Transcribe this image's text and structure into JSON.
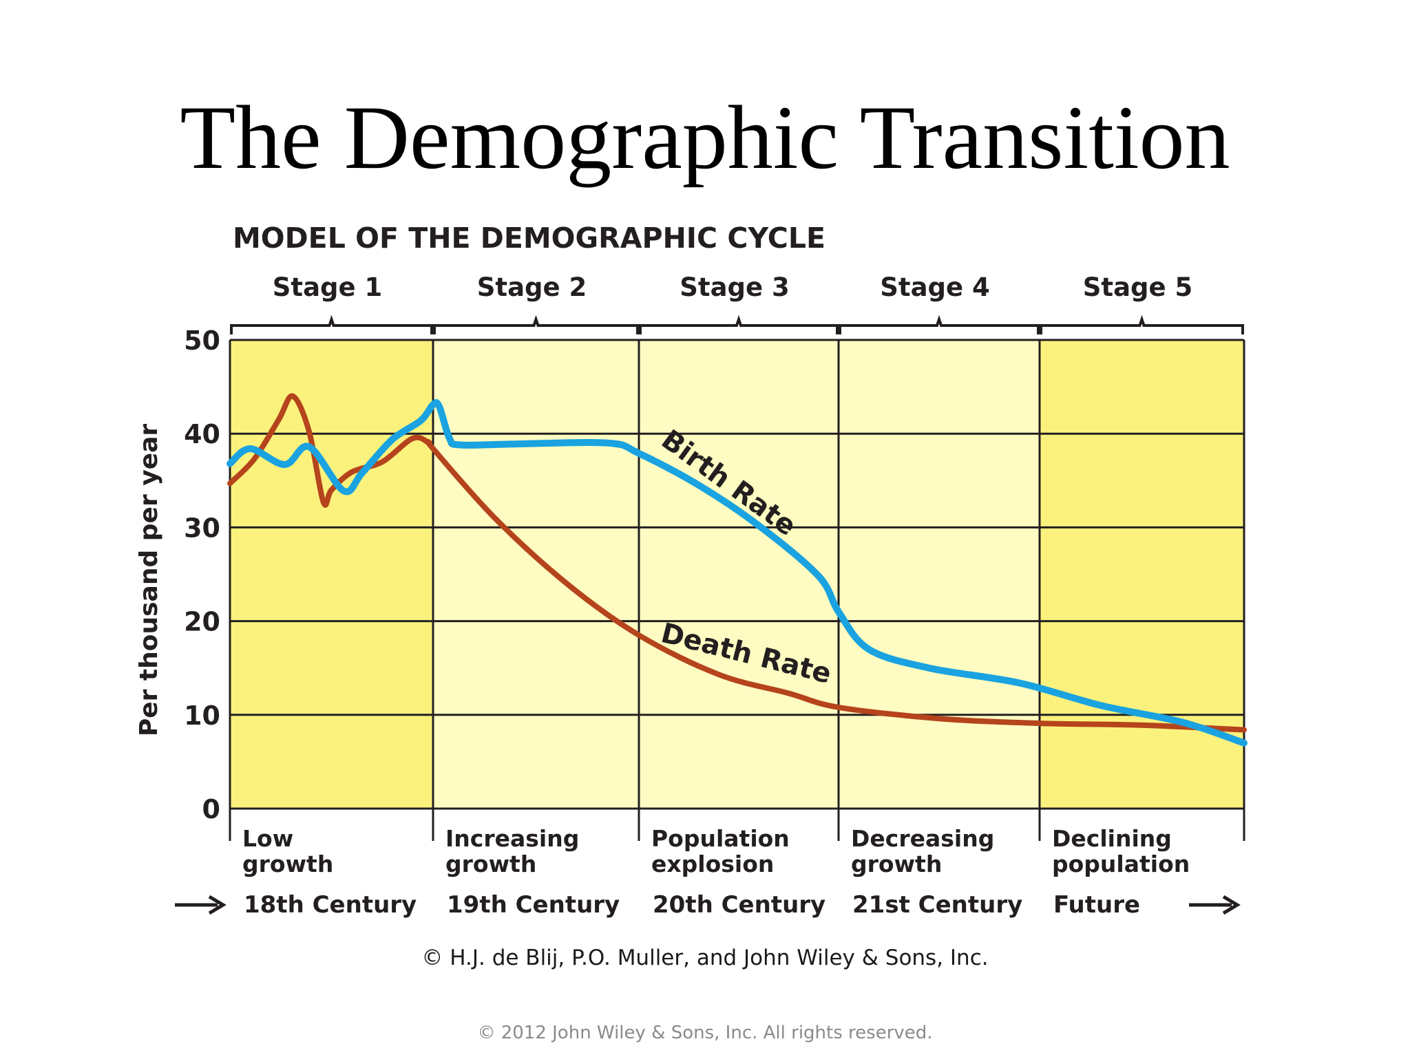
{
  "slide": {
    "title": "The Demographic Transition",
    "credit": "© H.J. de Blij, P.O. Muller, and John Wiley & Sons, Inc.",
    "footer": "© 2012 John Wiley & Sons, Inc. All rights reserved."
  },
  "colors": {
    "birth_rate": "#1aa3e0",
    "death_rate": "#b5441c",
    "band_strong": "#fbf27e",
    "band_light": "#fefcc2",
    "grid": "#231f20",
    "text": "#231f20"
  },
  "chart_data": {
    "type": "line",
    "title": "MODEL OF THE DEMOGRAPHIC CYCLE",
    "ylabel": "Per thousand per year",
    "ylim": [
      0,
      50
    ],
    "y_ticks": [
      "0",
      "10",
      "20",
      "30",
      "40",
      "50"
    ],
    "grid": true,
    "x_domain": [
      0,
      5
    ],
    "stages": [
      {
        "name": "Stage 1",
        "phase": "Low growth",
        "era": "18th Century",
        "shade": "strong"
      },
      {
        "name": "Stage 2",
        "phase": "Increasing growth",
        "era": "19th Century",
        "shade": "light"
      },
      {
        "name": "Stage 3",
        "phase": "Population explosion",
        "era": "20th Century",
        "shade": "light"
      },
      {
        "name": "Stage 4",
        "phase": "Decreasing growth",
        "era": "21st Century",
        "shade": "light"
      },
      {
        "name": "Stage 5",
        "phase": "Declining population",
        "era": "Future",
        "shade": "strong"
      }
    ],
    "series": [
      {
        "name": "Birth Rate",
        "x": [
          0,
          0.1,
          0.27,
          0.39,
          0.56,
          0.65,
          0.8,
          0.94,
          1.0,
          1.03,
          1.08,
          1.13,
          1.4,
          1.85,
          2.0,
          2.3,
          2.6,
          2.9,
          3.0,
          3.15,
          3.45,
          3.9,
          4.3,
          4.7,
          5.0
        ],
        "y": [
          36.8,
          38.4,
          36.7,
          38.6,
          33.9,
          35.8,
          39.4,
          41.4,
          43.1,
          42.9,
          39.5,
          38.8,
          38.9,
          39.0,
          37.9,
          34.5,
          30.2,
          24.8,
          21.0,
          17.0,
          15.0,
          13.4,
          11.0,
          9.2,
          7.0
        ]
      },
      {
        "name": "Death Rate",
        "x": [
          0,
          0.12,
          0.24,
          0.31,
          0.39,
          0.46,
          0.5,
          0.6,
          0.75,
          0.9,
          0.98,
          1.0,
          1.3,
          1.65,
          2.0,
          2.4,
          2.75,
          3.0,
          3.5,
          4.0,
          4.5,
          5.0
        ],
        "y": [
          34.7,
          37.3,
          41.5,
          44.0,
          40.2,
          32.7,
          34.0,
          35.9,
          37.0,
          39.5,
          39.0,
          38.4,
          31.0,
          24.0,
          18.5,
          14.3,
          12.3,
          10.8,
          9.6,
          9.1,
          8.9,
          8.4
        ]
      }
    ],
    "annotations": [
      "Birth Rate",
      "Death Rate"
    ]
  }
}
